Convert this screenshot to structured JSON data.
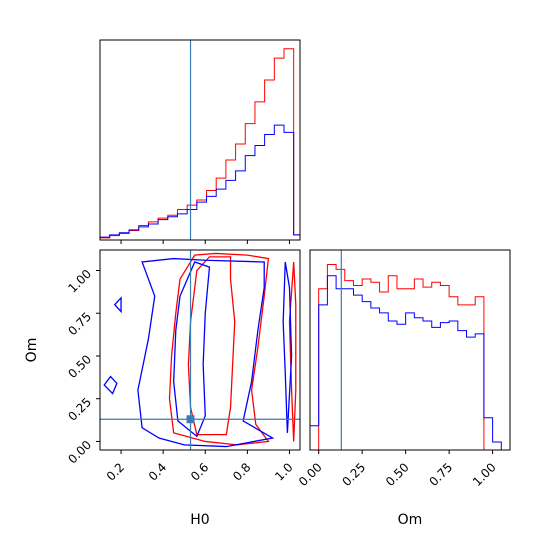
{
  "colors": {
    "series_a": "#ff0000",
    "series_b": "#0000ff",
    "truth": "#3a7db6",
    "frame": "#000000"
  },
  "chart_data": {
    "type": "corner",
    "parameters": [
      "H0",
      "Om"
    ],
    "truth": {
      "H0": 0.53,
      "Om": 0.13
    },
    "panels": [
      {
        "id": "h0-marginal",
        "type": "histogram",
        "xlim": [
          0.1,
          1.05
        ],
        "bin_edges": [
          0.1,
          0.146,
          0.192,
          0.238,
          0.284,
          0.33,
          0.376,
          0.422,
          0.468,
          0.514,
          0.56,
          0.606,
          0.652,
          0.698,
          0.744,
          0.79,
          0.836,
          0.882,
          0.928,
          0.974,
          1.02,
          1.05
        ],
        "series": [
          {
            "name": "",
            "color": "#ff0000",
            "counts": [
              0.3,
              0.6,
              0.9,
              1.3,
              2.0,
              2.5,
              3.0,
              3.4,
              4.2,
              4.8,
              5.5,
              6.8,
              8.5,
              11.0,
              13.2,
              16.0,
              19.0,
              22.0,
              25.0,
              26.3,
              0.7
            ]
          },
          {
            "name": "",
            "color": "#0000ff",
            "counts": [
              0.4,
              0.7,
              1.0,
              1.4,
              1.8,
              2.2,
              2.8,
              3.2,
              3.6,
              4.2,
              5.2,
              6.0,
              7.0,
              8.2,
              9.5,
              11.6,
              13.0,
              14.5,
              15.8,
              14.8,
              0.7
            ]
          }
        ],
        "ylim": [
          0,
          27.5
        ]
      },
      {
        "id": "joint-h0-om",
        "type": "contour",
        "xlabel": "H0",
        "ylabel": "Om",
        "xlim": [
          0.1,
          1.05
        ],
        "ylim": [
          -0.05,
          1.12
        ],
        "xticks": [
          0.2,
          0.4,
          0.6,
          0.8,
          1.0
        ],
        "xtick_labels": [
          "0.2",
          "0.4",
          "0.6",
          "0.8",
          "1.0"
        ],
        "yticks": [
          0.0,
          0.25,
          0.5,
          0.75,
          1.0
        ],
        "ytick_labels": [
          "0.00",
          "0.25",
          "0.50",
          "0.75",
          "1.00"
        ],
        "contours": [
          {
            "color": "#ff0000",
            "points": [
              [
                0.56,
                0.04
              ],
              [
                0.53,
                0.2
              ],
              [
                0.52,
                0.45
              ],
              [
                0.53,
                0.7
              ],
              [
                0.56,
                1.0
              ],
              [
                0.62,
                1.08
              ],
              [
                0.72,
                1.08
              ],
              [
                0.72,
                0.95
              ],
              [
                0.74,
                0.7
              ],
              [
                0.73,
                0.45
              ],
              [
                0.72,
                0.2
              ],
              [
                0.7,
                0.04
              ]
            ]
          },
          {
            "color": "#ff0000",
            "points": [
              [
                0.45,
                0.05
              ],
              [
                0.43,
                0.25
              ],
              [
                0.44,
                0.5
              ],
              [
                0.46,
                0.75
              ],
              [
                0.48,
                0.95
              ],
              [
                0.55,
                1.09
              ],
              [
                0.65,
                1.1
              ],
              [
                0.8,
                1.09
              ],
              [
                0.9,
                1.07
              ],
              [
                0.88,
                0.85
              ],
              [
                0.85,
                0.55
              ],
              [
                0.82,
                0.3
              ],
              [
                0.84,
                0.1
              ],
              [
                0.9,
                0.0
              ],
              [
                0.75,
                -0.02
              ],
              [
                0.6,
                0.0
              ]
            ]
          },
          {
            "color": "#ff0000",
            "points": [
              [
                1.02,
                1.05
              ],
              [
                1.0,
                0.7
              ],
              [
                1.01,
                0.3
              ],
              [
                1.02,
                0.0
              ],
              [
                1.03,
                0.3
              ],
              [
                1.03,
                0.8
              ]
            ]
          },
          {
            "color": "#0000ff",
            "points": [
              [
                0.47,
                0.12
              ],
              [
                0.45,
                0.35
              ],
              [
                0.46,
                0.65
              ],
              [
                0.48,
                0.85
              ],
              [
                0.55,
                1.05
              ],
              [
                0.62,
                1.02
              ],
              [
                0.6,
                0.75
              ],
              [
                0.59,
                0.45
              ],
              [
                0.6,
                0.15
              ],
              [
                0.56,
                0.03
              ]
            ]
          },
          {
            "color": "#0000ff",
            "points": [
              [
                0.3,
                0.08
              ],
              [
                0.28,
                0.3
              ],
              [
                0.33,
                0.6
              ],
              [
                0.36,
                0.85
              ],
              [
                0.3,
                1.05
              ],
              [
                0.45,
                1.07
              ],
              [
                0.6,
                1.06
              ],
              [
                0.88,
                1.05
              ],
              [
                0.88,
                0.9
              ],
              [
                0.85,
                0.65
              ],
              [
                0.82,
                0.35
              ],
              [
                0.78,
                0.12
              ],
              [
                0.92,
                0.02
              ],
              [
                0.7,
                -0.03
              ],
              [
                0.5,
                -0.02
              ],
              [
                0.38,
                0.02
              ]
            ]
          },
          {
            "color": "#0000ff",
            "points": [
              [
                0.12,
                0.33
              ],
              [
                0.16,
                0.28
              ],
              [
                0.18,
                0.34
              ],
              [
                0.15,
                0.38
              ]
            ]
          },
          {
            "color": "#0000ff",
            "points": [
              [
                0.17,
                0.8
              ],
              [
                0.2,
                0.84
              ],
              [
                0.2,
                0.76
              ]
            ]
          },
          {
            "color": "#0000ff",
            "points": [
              [
                0.98,
                1.05
              ],
              [
                0.97,
                0.7
              ],
              [
                0.98,
                0.4
              ],
              [
                0.99,
                0.05
              ],
              [
                1.01,
                0.5
              ],
              [
                1.0,
                0.9
              ]
            ]
          }
        ]
      },
      {
        "id": "om-marginal",
        "type": "histogram",
        "xlabel": "Om",
        "xlim": [
          -0.05,
          1.1
        ],
        "xticks": [
          0.0,
          0.25,
          0.5,
          0.75,
          1.0
        ],
        "xtick_labels": [
          "0.00",
          "0.25",
          "0.50",
          "0.75",
          "1.00"
        ],
        "bin_edges": [
          -0.05,
          0.0,
          0.05,
          0.1,
          0.15,
          0.2,
          0.25,
          0.3,
          0.35,
          0.4,
          0.45,
          0.5,
          0.55,
          0.6,
          0.65,
          0.7,
          0.75,
          0.8,
          0.85,
          0.9,
          0.95,
          1.0,
          1.05,
          1.1
        ],
        "series": [
          {
            "name": "",
            "color": "#ff0000",
            "counts": [
              0.0,
              1.0,
              1.15,
              1.12,
              1.05,
              1.02,
              1.06,
              1.04,
              0.98,
              1.08,
              1.0,
              1.0,
              1.06,
              1.01,
              1.04,
              1.02,
              0.95,
              0.9,
              0.9,
              0.95,
              0.0,
              0.0,
              0.0
            ]
          },
          {
            "name": "",
            "color": "#0000ff",
            "counts": [
              0.15,
              0.9,
              1.08,
              1.0,
              1.0,
              0.96,
              0.92,
              0.88,
              0.85,
              0.8,
              0.78,
              0.85,
              0.82,
              0.8,
              0.76,
              0.79,
              0.8,
              0.74,
              0.7,
              0.72,
              0.2,
              0.05,
              0.0
            ]
          }
        ],
        "ylim": [
          0,
          1.24
        ]
      }
    ]
  }
}
